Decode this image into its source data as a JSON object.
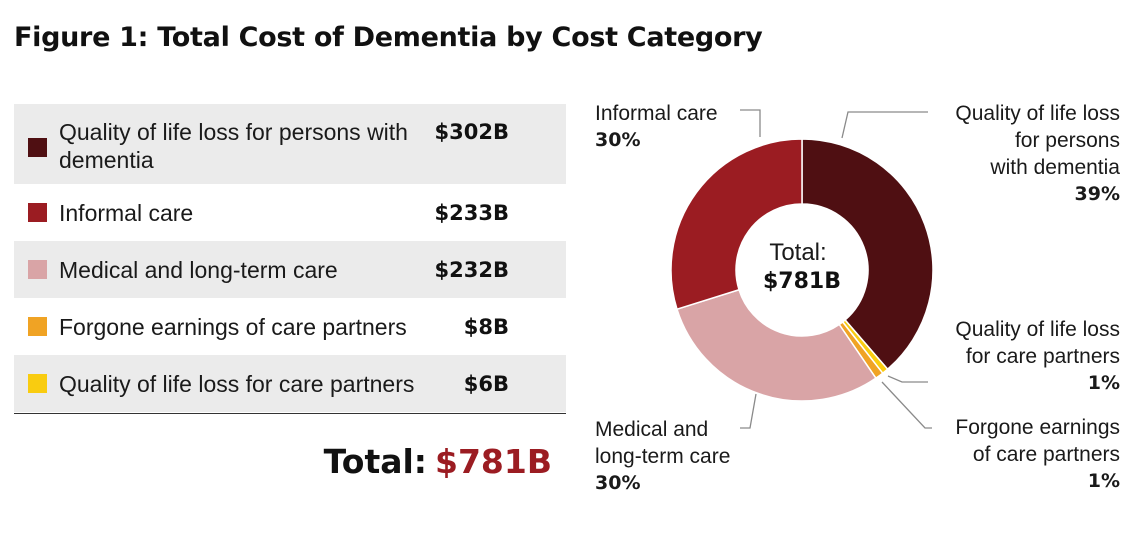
{
  "title": "Figure 1: Total Cost of Dementia by Cost Category",
  "colors": {
    "quality_dementia": "#4f0f12",
    "informal": "#9b1c22",
    "medical": "#d9a4a6",
    "forgone": "#f0a324",
    "quality_partners": "#f9cc10"
  },
  "table": {
    "rows": [
      {
        "label": "Quality of life loss for persons with dementia",
        "value": "$302B",
        "color": "#4f0f12"
      },
      {
        "label": "Informal care",
        "value": "$233B",
        "color": "#9b1c22"
      },
      {
        "label": "Medical and long-term care",
        "value": "$232B",
        "color": "#d9a4a6"
      },
      {
        "label": "Forgone earnings of care partners",
        "value": "$8B",
        "color": "#f0a324"
      },
      {
        "label": "Quality of life loss for care partners",
        "value": "$6B",
        "color": "#f9cc10"
      }
    ],
    "total_label": "Total:",
    "total_value": "$781B"
  },
  "donut": {
    "center_label": "Total:",
    "center_value": "$781B"
  },
  "callouts": {
    "informal": {
      "line1": "Informal care",
      "pct": "30%"
    },
    "quality_dementia": {
      "line1": "Quality of life loss",
      "line2": "for persons",
      "line3": "with dementia",
      "pct": "39%"
    },
    "quality_partners": {
      "line1": "Quality of life loss",
      "line2": "for care partners",
      "pct": "1%"
    },
    "forgone": {
      "line1": "Forgone earnings",
      "line2": "of care partners",
      "pct": "1%"
    },
    "medical": {
      "line1": "Medical and",
      "line2": "long-term care",
      "pct": "30%"
    }
  },
  "chart_data": {
    "type": "pie",
    "title": "Figure 1: Total Cost of Dementia by Cost Category",
    "categories": [
      "Quality of life loss for persons with dementia",
      "Quality of life loss for care partners",
      "Forgone earnings of care partners",
      "Medical and long-term care",
      "Informal care"
    ],
    "values": [
      302,
      6,
      8,
      232,
      233
    ],
    "percent_labels": [
      "39%",
      "1%",
      "1%",
      "30%",
      "30%"
    ],
    "colors": [
      "#4f0f12",
      "#f9cc10",
      "#f0a324",
      "#d9a4a6",
      "#9b1c22"
    ],
    "total": 781,
    "donut": true,
    "start_angle_deg": 0,
    "direction": "clockwise"
  }
}
